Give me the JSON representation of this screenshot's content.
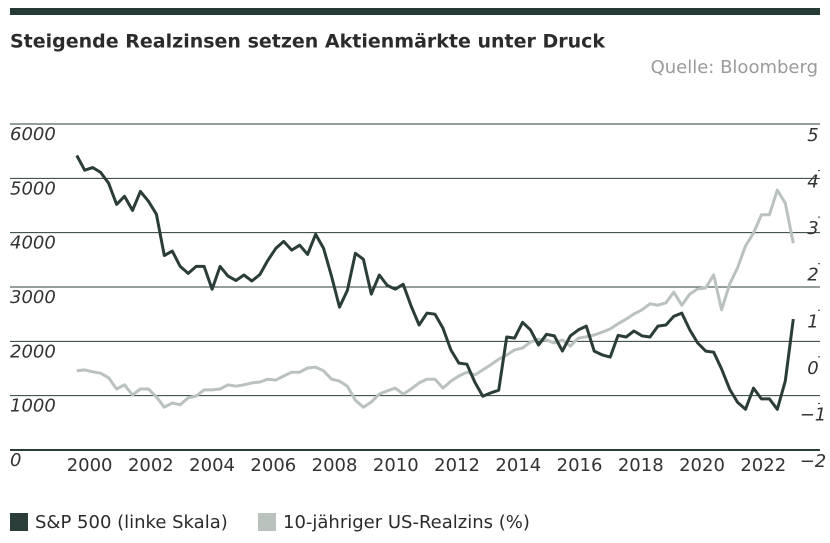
{
  "chart_data": {
    "type": "line",
    "title": "Steigende Realzinsen setzen Aktienmärkte unter Druck",
    "source": "Quelle: Bloomberg",
    "x": [
      1999.58,
      1999.84,
      2000.1,
      2000.36,
      2000.62,
      2000.88,
      2001.14,
      2001.4,
      2001.66,
      2001.92,
      2002.18,
      2002.44,
      2002.7,
      2002.96,
      2003.22,
      2003.48,
      2003.74,
      2004.0,
      2004.26,
      2004.52,
      2004.78,
      2005.04,
      2005.3,
      2005.56,
      2005.82,
      2006.08,
      2006.34,
      2006.6,
      2006.86,
      2007.12,
      2007.38,
      2007.64,
      2007.9,
      2008.16,
      2008.42,
      2008.68,
      2008.94,
      2009.2,
      2009.46,
      2009.72,
      2009.98,
      2010.24,
      2010.5,
      2010.76,
      2011.02,
      2011.28,
      2011.54,
      2011.8,
      2012.06,
      2012.32,
      2012.58,
      2012.84,
      2013.1,
      2013.36,
      2013.62,
      2013.88,
      2014.14,
      2014.4,
      2014.66,
      2014.92,
      2015.18,
      2015.44,
      2015.7,
      2015.96,
      2016.22,
      2016.48,
      2016.74,
      2017.0,
      2017.26,
      2017.52,
      2017.78,
      2018.04,
      2018.3,
      2018.56,
      2018.82,
      2019.08,
      2019.34,
      2019.6,
      2019.86,
      2020.12,
      2020.38,
      2020.64,
      2020.9,
      2021.16,
      2021.42,
      2021.68,
      2021.94,
      2022.2,
      2022.46,
      2022.72,
      2022.98
    ],
    "series": [
      {
        "name": "S&P 500 (linke Skala)",
        "color": "#2b3d38",
        "axis": "y",
        "values": [
          5420,
          5150,
          5200,
          5110,
          4910,
          4520,
          4670,
          4410,
          4760,
          4580,
          4340,
          3580,
          3660,
          3380,
          3250,
          3380,
          3380,
          2960,
          3380,
          3200,
          3120,
          3220,
          3110,
          3230,
          3490,
          3710,
          3840,
          3680,
          3770,
          3600,
          3970,
          3710,
          3200,
          2630,
          2940,
          3620,
          3510,
          2870,
          3220,
          3030,
          2960,
          3050,
          2650,
          2300,
          2520,
          2500,
          2240,
          1840,
          1600,
          1580,
          1250,
          990,
          1050,
          1100,
          2080,
          2060,
          2350,
          2210,
          1930,
          2130,
          2100,
          1820,
          2100,
          2210,
          2280,
          1820,
          1750,
          1710,
          2110,
          2080,
          2190,
          2100,
          2080,
          2280,
          2300,
          2460,
          2520,
          2210,
          1970,
          1820,
          1800,
          1490,
          1120,
          880,
          750,
          1140,
          940,
          940,
          750,
          1270,
          2410
        ]
      },
      {
        "name": "10-jähriger US-Realzins (%)",
        "color": "#b9c2bc",
        "axis": "y2",
        "values": [
          -0.3,
          -0.28,
          -0.32,
          -0.35,
          -0.45,
          -0.69,
          -0.6,
          -0.82,
          -0.69,
          -0.69,
          -0.86,
          -1.08,
          -0.99,
          -1.03,
          -0.88,
          -0.84,
          -0.71,
          -0.71,
          -0.69,
          -0.6,
          -0.63,
          -0.6,
          -0.56,
          -0.54,
          -0.48,
          -0.5,
          -0.41,
          -0.33,
          -0.33,
          -0.24,
          -0.22,
          -0.3,
          -0.48,
          -0.52,
          -0.63,
          -0.93,
          -1.08,
          -0.97,
          -0.8,
          -0.73,
          -0.67,
          -0.8,
          -0.69,
          -0.56,
          -0.48,
          -0.48,
          -0.67,
          -0.52,
          -0.41,
          -0.33,
          -0.39,
          -0.28,
          -0.17,
          -0.05,
          0.04,
          0.15,
          0.19,
          0.32,
          0.38,
          0.36,
          0.3,
          0.36,
          0.23,
          0.4,
          0.43,
          0.47,
          0.53,
          0.6,
          0.71,
          0.81,
          0.92,
          1.01,
          1.14,
          1.11,
          1.16,
          1.39,
          1.11,
          1.35,
          1.46,
          1.48,
          1.76,
          1.01,
          1.56,
          1.91,
          2.38,
          2.66,
          3.05,
          3.05,
          3.58,
          3.3,
          2.44
        ]
      }
    ],
    "xlim": [
      1997.4,
      2023.2
    ],
    "xticks": [
      2000,
      2002,
      2004,
      2006,
      2008,
      2010,
      2012,
      2014,
      2016,
      2018,
      2020,
      2022
    ],
    "ylim": [
      0,
      6000
    ],
    "yticks": [
      0,
      1000,
      2000,
      3000,
      4000,
      5000,
      6000
    ],
    "y2lim": [
      -2,
      5
    ],
    "y2ticks": [
      {
        "value": -2,
        "label": "−2"
      },
      {
        "value": -1,
        "label": "−1"
      },
      0,
      1,
      2,
      3,
      4,
      5
    ],
    "grid": true
  }
}
